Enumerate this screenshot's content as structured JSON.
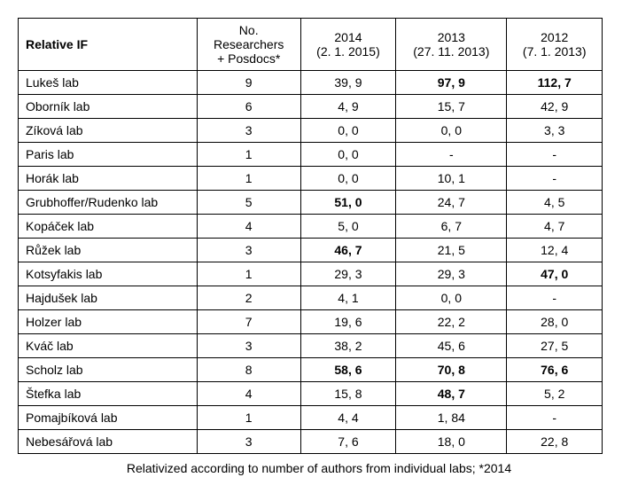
{
  "columns": [
    "Relative IF",
    "No. Researchers + Posdocs*",
    "2014 (2. 1. 2015)",
    "2013 (27. 11. 2013)",
    "2012 (7. 1. 2013)"
  ],
  "rows": [
    {
      "lab": "Lukeš lab",
      "no": "9",
      "y2014": "39, 9",
      "b2014": false,
      "y2013": "97, 9",
      "b2013": true,
      "y2012": "112, 7",
      "b2012": true
    },
    {
      "lab": "Oborník lab",
      "no": "6",
      "y2014": "4, 9",
      "b2014": false,
      "y2013": "15, 7",
      "b2013": false,
      "y2012": "42, 9",
      "b2012": false
    },
    {
      "lab": "Zíková lab",
      "no": "3",
      "y2014": "0, 0",
      "b2014": false,
      "y2013": "0, 0",
      "b2013": false,
      "y2012": "3, 3",
      "b2012": false
    },
    {
      "lab": "Paris lab",
      "no": "1",
      "y2014": "0, 0",
      "b2014": false,
      "y2013": "-",
      "b2013": false,
      "y2012": "-",
      "b2012": false
    },
    {
      "lab": "Horák lab",
      "no": "1",
      "y2014": "0, 0",
      "b2014": false,
      "y2013": "10, 1",
      "b2013": false,
      "y2012": "-",
      "b2012": false
    },
    {
      "lab": "Grubhoffer/Rudenko lab",
      "no": "5",
      "y2014": "51, 0",
      "b2014": true,
      "y2013": "24, 7",
      "b2013": false,
      "y2012": "4, 5",
      "b2012": false
    },
    {
      "lab": "Kopáček lab",
      "no": "4",
      "y2014": "5, 0",
      "b2014": false,
      "y2013": "6, 7",
      "b2013": false,
      "y2012": "4, 7",
      "b2012": false
    },
    {
      "lab": "Růžek lab",
      "no": "3",
      "y2014": "46, 7",
      "b2014": true,
      "y2013": "21, 5",
      "b2013": false,
      "y2012": "12, 4",
      "b2012": false
    },
    {
      "lab": "Kotsyfakis lab",
      "no": "1",
      "y2014": "29, 3",
      "b2014": false,
      "y2013": "29, 3",
      "b2013": false,
      "y2012": "47, 0",
      "b2012": true
    },
    {
      "lab": "Hajdušek lab",
      "no": "2",
      "y2014": "4, 1",
      "b2014": false,
      "y2013": "0, 0",
      "b2013": false,
      "y2012": "-",
      "b2012": false
    },
    {
      "lab": "Holzer lab",
      "no": "7",
      "y2014": "19, 6",
      "b2014": false,
      "y2013": "22, 2",
      "b2013": false,
      "y2012": "28, 0",
      "b2012": false
    },
    {
      "lab": "Kváč lab",
      "no": "3",
      "y2014": "38, 2",
      "b2014": false,
      "y2013": "45, 6",
      "b2013": false,
      "y2012": "27, 5",
      "b2012": false
    },
    {
      "lab": "Scholz lab",
      "no": "8",
      "y2014": "58, 6",
      "b2014": true,
      "y2013": "70, 8",
      "b2013": true,
      "y2012": "76, 6",
      "b2012": true
    },
    {
      "lab": "Štefka lab",
      "no": "4",
      "y2014": "15, 8",
      "b2014": false,
      "y2013": "48, 7",
      "b2013": true,
      "y2012": "5, 2",
      "b2012": false
    },
    {
      "lab": "Pomajbíková lab",
      "no": "1",
      "y2014": "4, 4",
      "b2014": false,
      "y2013": "1, 84",
      "b2013": false,
      "y2012": "-",
      "b2012": false
    },
    {
      "lab": "Nebesářová lab",
      "no": "3",
      "y2014": "7, 6",
      "b2014": false,
      "y2013": "18, 0",
      "b2013": false,
      "y2012": "22, 8",
      "b2012": false
    }
  ],
  "footnote": "Relativized according to number of authors from individual labs; *2014"
}
